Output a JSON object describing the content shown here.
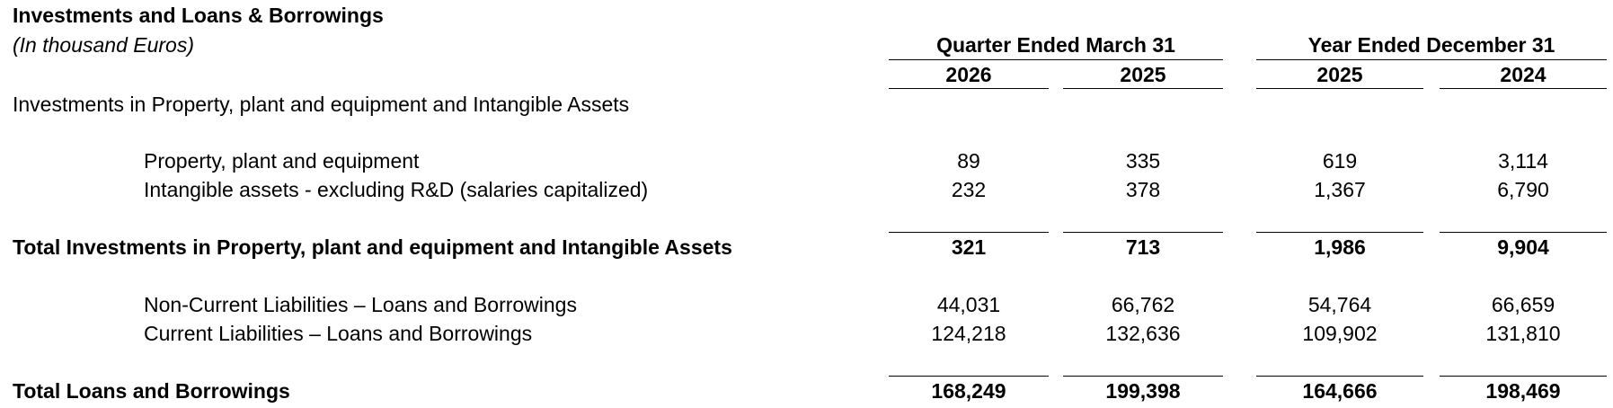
{
  "title": "Investments and Loans & Borrowings",
  "subtitle": "(In thousand Euros)",
  "column_groups": [
    {
      "label": "Quarter Ended March 31",
      "years": [
        "2026",
        "2025"
      ]
    },
    {
      "label": "Year Ended December 31",
      "years": [
        "2025",
        "2024"
      ]
    }
  ],
  "section_investments": {
    "label": "Investments in Property, plant and equipment and Intangible Assets",
    "rows": [
      {
        "label": "Property, plant and equipment",
        "values": [
          "89",
          "335",
          "619",
          "3,114"
        ]
      },
      {
        "label": "Intangible assets - excluding R&D (salaries capitalized)",
        "values": [
          "232",
          "378",
          "1,367",
          "6,790"
        ]
      }
    ],
    "total": {
      "label": "Total Investments in Property, plant and equipment and Intangible Assets",
      "values": [
        "321",
        "713",
        "1,986",
        "9,904"
      ]
    }
  },
  "section_loans": {
    "rows": [
      {
        "label": "Non-Current Liabilities – Loans and Borrowings",
        "values": [
          "44,031",
          "66,762",
          "54,764",
          "66,659"
        ]
      },
      {
        "label": "Current Liabilities – Loans and Borrowings",
        "values": [
          "124,218",
          "132,636",
          "109,902",
          "131,810"
        ]
      }
    ],
    "total": {
      "label": "Total Loans and Borrowings",
      "values": [
        "168,249",
        "199,398",
        "164,666",
        "198,469"
      ]
    }
  }
}
